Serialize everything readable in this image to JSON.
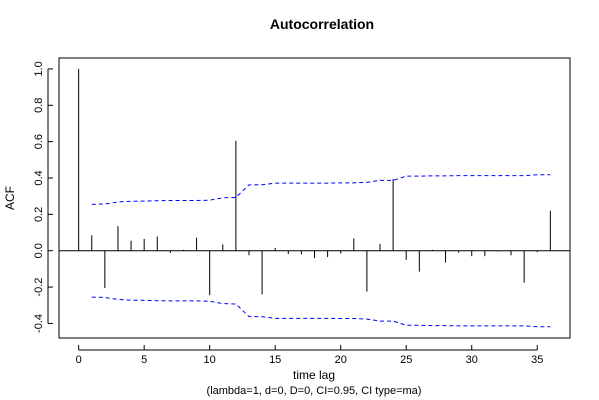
{
  "chart_data": {
    "type": "bar",
    "title": "Autocorrelation",
    "xlabel": "time lag",
    "subtitle": "(lambda=1, d=0, D=0, CI=0.95, CI type=ma)",
    "ylabel": "ACF",
    "xlim": [
      -1.5,
      37.5
    ],
    "ylim": [
      -0.48,
      1.06
    ],
    "x_ticks": [
      0,
      5,
      10,
      15,
      20,
      25,
      30,
      35
    ],
    "y_ticks": [
      -0.4,
      -0.2,
      0.0,
      0.2,
      0.4,
      0.6,
      0.8,
      1.0
    ],
    "y_tick_labels": [
      "-0.4",
      "-0.2",
      "0.0",
      "0.2",
      "0.4",
      "0.6",
      "0.8",
      "1.0"
    ],
    "x_tick_labels": [
      "0",
      "5",
      "10",
      "15",
      "20",
      "25",
      "30",
      "35"
    ],
    "lags": [
      0,
      1,
      2,
      3,
      4,
      5,
      6,
      7,
      8,
      9,
      10,
      11,
      12,
      13,
      14,
      15,
      16,
      17,
      18,
      19,
      20,
      21,
      22,
      23,
      24,
      25,
      26,
      27,
      28,
      29,
      30,
      31,
      32,
      33,
      34,
      35,
      36
    ],
    "acf": [
      1.0,
      0.085,
      -0.205,
      0.135,
      0.055,
      0.065,
      0.078,
      -0.012,
      0.005,
      0.072,
      -0.245,
      0.035,
      0.605,
      -0.025,
      -0.24,
      0.015,
      -0.018,
      -0.02,
      -0.04,
      -0.035,
      -0.015,
      0.068,
      -0.225,
      0.038,
      0.395,
      -0.05,
      -0.115,
      0.005,
      -0.065,
      -0.01,
      -0.03,
      -0.03,
      -0.005,
      -0.025,
      -0.175,
      -0.008,
      0.22
    ],
    "ci_lags": [
      1,
      2,
      3,
      4,
      5,
      6,
      7,
      8,
      9,
      10,
      11,
      12,
      13,
      14,
      15,
      16,
      17,
      18,
      19,
      20,
      21,
      22,
      23,
      24,
      25,
      26,
      27,
      28,
      29,
      30,
      31,
      32,
      33,
      34,
      35,
      36
    ],
    "ci_upper": [
      0.255,
      0.257,
      0.268,
      0.272,
      0.273,
      0.275,
      0.276,
      0.276,
      0.276,
      0.278,
      0.291,
      0.293,
      0.362,
      0.363,
      0.372,
      0.372,
      0.372,
      0.372,
      0.372,
      0.373,
      0.373,
      0.376,
      0.387,
      0.387,
      0.41,
      0.41,
      0.412,
      0.412,
      0.413,
      0.413,
      0.413,
      0.413,
      0.413,
      0.413,
      0.418,
      0.418
    ],
    "colors": {
      "bars": "#000000",
      "ci": "#0000ff",
      "zero_line": "#000000",
      "frame": "#000000"
    }
  }
}
